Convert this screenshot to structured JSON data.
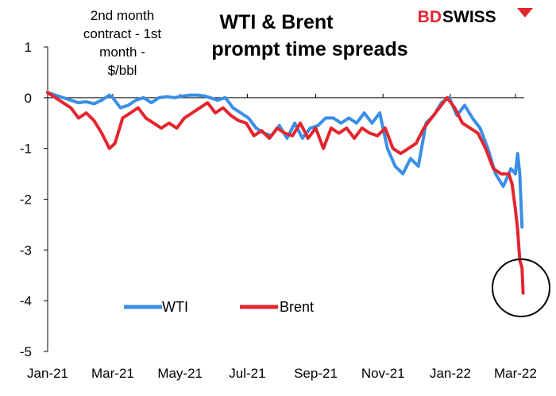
{
  "logo": {
    "part1": "BD",
    "part2": "SWISS"
  },
  "chart_data": {
    "type": "line",
    "title_line1": "WTI & Brent",
    "title_line2": "prompt time spreads",
    "ylabel_lines": [
      "2nd month",
      "contract - 1st",
      "month -",
      "$/bbl"
    ],
    "xlabel": "",
    "ylim": [
      -5,
      1
    ],
    "yticks": [
      1,
      0,
      -1,
      -2,
      -3,
      -4,
      -5
    ],
    "xlim": [
      "2021-01-01",
      "2022-03-09"
    ],
    "xtick_dates": [
      "2021-01-01",
      "2021-03-01",
      "2021-05-01",
      "2021-07-01",
      "2021-09-01",
      "2021-11-01",
      "2022-01-01",
      "2022-03-01"
    ],
    "xtick_labels": [
      "Jan-21",
      "Mar-21",
      "May-21",
      "Jul-21",
      "Sep-21",
      "Nov-21",
      "Jan-22",
      "Mar-22"
    ],
    "grid": false,
    "legend_position": "bottom-left",
    "annotation": "circle around latest Brent value",
    "series": [
      {
        "name": "WTI",
        "color": "#3a8fe6",
        "points": [
          [
            "2021-01-01",
            0.1
          ],
          [
            "2021-01-08",
            0.05
          ],
          [
            "2021-01-15",
            0.0
          ],
          [
            "2021-01-22",
            -0.05
          ],
          [
            "2021-01-29",
            -0.1
          ],
          [
            "2021-02-05",
            -0.08
          ],
          [
            "2021-02-12",
            -0.12
          ],
          [
            "2021-02-19",
            -0.05
          ],
          [
            "2021-02-26",
            0.05
          ],
          [
            "2021-03-01",
            0.0
          ],
          [
            "2021-03-08",
            -0.2
          ],
          [
            "2021-03-15",
            -0.15
          ],
          [
            "2021-03-22",
            -0.05
          ],
          [
            "2021-03-29",
            0.0
          ],
          [
            "2021-04-05",
            -0.1
          ],
          [
            "2021-04-12",
            0.0
          ],
          [
            "2021-04-19",
            0.02
          ],
          [
            "2021-04-26",
            0.0
          ],
          [
            "2021-05-03",
            0.03
          ],
          [
            "2021-05-10",
            0.05
          ],
          [
            "2021-05-17",
            0.05
          ],
          [
            "2021-05-24",
            0.03
          ],
          [
            "2021-05-28",
            0.0
          ],
          [
            "2021-06-04",
            -0.05
          ],
          [
            "2021-06-11",
            0.0
          ],
          [
            "2021-06-18",
            -0.2
          ],
          [
            "2021-06-25",
            -0.3
          ],
          [
            "2021-07-02",
            -0.4
          ],
          [
            "2021-07-09",
            -0.6
          ],
          [
            "2021-07-16",
            -0.7
          ],
          [
            "2021-07-23",
            -0.75
          ],
          [
            "2021-07-30",
            -0.55
          ],
          [
            "2021-08-06",
            -0.8
          ],
          [
            "2021-08-13",
            -0.5
          ],
          [
            "2021-08-20",
            -0.8
          ],
          [
            "2021-08-27",
            -0.6
          ],
          [
            "2021-09-03",
            -0.55
          ],
          [
            "2021-09-10",
            -0.4
          ],
          [
            "2021-09-17",
            -0.4
          ],
          [
            "2021-09-24",
            -0.5
          ],
          [
            "2021-10-01",
            -0.4
          ],
          [
            "2021-10-08",
            -0.5
          ],
          [
            "2021-10-15",
            -0.3
          ],
          [
            "2021-10-22",
            -0.5
          ],
          [
            "2021-10-29",
            -0.3
          ],
          [
            "2021-11-05",
            -1.0
          ],
          [
            "2021-11-12",
            -1.35
          ],
          [
            "2021-11-19",
            -1.5
          ],
          [
            "2021-11-26",
            -1.2
          ],
          [
            "2021-12-03",
            -1.35
          ],
          [
            "2021-12-10",
            -0.5
          ],
          [
            "2021-12-17",
            -0.35
          ],
          [
            "2021-12-24",
            -0.1
          ],
          [
            "2021-12-31",
            0.0
          ],
          [
            "2022-01-07",
            -0.35
          ],
          [
            "2022-01-14",
            -0.15
          ],
          [
            "2022-01-21",
            -0.4
          ],
          [
            "2022-01-28",
            -0.6
          ],
          [
            "2022-02-04",
            -1.0
          ],
          [
            "2022-02-11",
            -1.5
          ],
          [
            "2022-02-18",
            -1.75
          ],
          [
            "2022-02-25",
            -1.4
          ],
          [
            "2022-03-01",
            -1.5
          ],
          [
            "2022-03-03",
            -1.1
          ],
          [
            "2022-03-05",
            -1.5
          ],
          [
            "2022-03-07",
            -2.55
          ]
        ]
      },
      {
        "name": "Brent",
        "color": "#e3262e",
        "points": [
          [
            "2021-01-01",
            0.1
          ],
          [
            "2021-01-08",
            0.0
          ],
          [
            "2021-01-15",
            -0.1
          ],
          [
            "2021-01-22",
            -0.2
          ],
          [
            "2021-01-29",
            -0.4
          ],
          [
            "2021-02-05",
            -0.3
          ],
          [
            "2021-02-12",
            -0.45
          ],
          [
            "2021-02-19",
            -0.7
          ],
          [
            "2021-02-26",
            -1.0
          ],
          [
            "2021-03-03",
            -0.9
          ],
          [
            "2021-03-10",
            -0.4
          ],
          [
            "2021-03-17",
            -0.3
          ],
          [
            "2021-03-24",
            -0.2
          ],
          [
            "2021-03-31",
            -0.4
          ],
          [
            "2021-04-07",
            -0.5
          ],
          [
            "2021-04-14",
            -0.6
          ],
          [
            "2021-04-21",
            -0.5
          ],
          [
            "2021-04-28",
            -0.6
          ],
          [
            "2021-05-05",
            -0.4
          ],
          [
            "2021-05-12",
            -0.3
          ],
          [
            "2021-05-19",
            -0.2
          ],
          [
            "2021-05-26",
            -0.1
          ],
          [
            "2021-06-02",
            -0.3
          ],
          [
            "2021-06-09",
            -0.2
          ],
          [
            "2021-06-16",
            -0.35
          ],
          [
            "2021-06-23",
            -0.45
          ],
          [
            "2021-06-30",
            -0.5
          ],
          [
            "2021-07-07",
            -0.75
          ],
          [
            "2021-07-14",
            -0.65
          ],
          [
            "2021-07-21",
            -0.8
          ],
          [
            "2021-07-28",
            -0.6
          ],
          [
            "2021-08-04",
            -0.7
          ],
          [
            "2021-08-11",
            -0.75
          ],
          [
            "2021-08-18",
            -0.5
          ],
          [
            "2021-08-25",
            -0.8
          ],
          [
            "2021-09-01",
            -0.6
          ],
          [
            "2021-09-08",
            -1.0
          ],
          [
            "2021-09-15",
            -0.6
          ],
          [
            "2021-09-22",
            -0.7
          ],
          [
            "2021-09-29",
            -0.6
          ],
          [
            "2021-10-06",
            -0.8
          ],
          [
            "2021-10-13",
            -0.6
          ],
          [
            "2021-10-20",
            -0.7
          ],
          [
            "2021-10-27",
            -0.75
          ],
          [
            "2021-11-03",
            -0.6
          ],
          [
            "2021-11-10",
            -1.0
          ],
          [
            "2021-11-17",
            -1.1
          ],
          [
            "2021-11-24",
            -1.0
          ],
          [
            "2021-12-01",
            -0.9
          ],
          [
            "2021-12-08",
            -0.6
          ],
          [
            "2021-12-15",
            -0.4
          ],
          [
            "2021-12-22",
            -0.2
          ],
          [
            "2021-12-29",
            0.0
          ],
          [
            "2022-01-05",
            -0.2
          ],
          [
            "2022-01-12",
            -0.5
          ],
          [
            "2022-01-19",
            -0.6
          ],
          [
            "2022-01-26",
            -0.7
          ],
          [
            "2022-02-02",
            -1.0
          ],
          [
            "2022-02-09",
            -1.4
          ],
          [
            "2022-02-16",
            -1.5
          ],
          [
            "2022-02-23",
            -1.5
          ],
          [
            "2022-02-26",
            -1.7
          ],
          [
            "2022-03-01",
            -2.2
          ],
          [
            "2022-03-03",
            -2.6
          ],
          [
            "2022-03-05",
            -3.2
          ],
          [
            "2022-03-07",
            -3.35
          ],
          [
            "2022-03-08",
            -3.85
          ]
        ]
      }
    ]
  }
}
